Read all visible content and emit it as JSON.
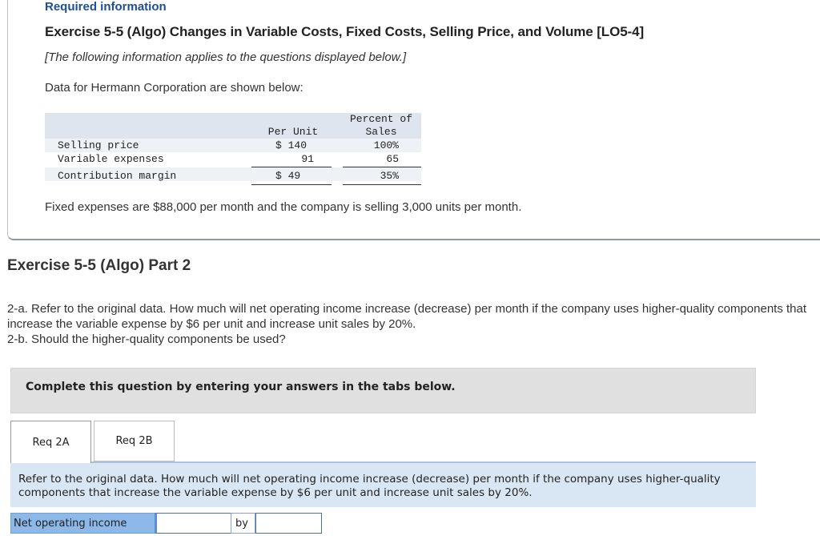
{
  "info": {
    "required_label": "Required information",
    "exercise_title": "Exercise 5-5 (Algo) Changes in Variable Costs, Fixed Costs, Selling Price, and Volume [LO5-4]",
    "follow_note": "[The following information applies to the questions displayed below.]",
    "data_intro": "Data for Hermann Corporation are shown below:",
    "table": {
      "header_per_unit": "Per Unit",
      "header_percent_line1": "Percent of",
      "header_percent_line2": "Sales",
      "rows": [
        {
          "label": "Selling price",
          "per_unit": "$ 140",
          "percent": "100%"
        },
        {
          "label": "Variable expenses",
          "per_unit": "91",
          "percent": "65"
        },
        {
          "label": "Contribution margin",
          "per_unit": "$ 49",
          "percent": "35%"
        }
      ]
    },
    "fixed_text": "Fixed expenses are $88,000 per month and the company is selling 3,000 units per month."
  },
  "part": {
    "title": "Exercise 5-5 (Algo) Part 2",
    "question_2a": "2-a. Refer to the original data. How much will net operating income increase (decrease) per month if the company uses higher-quality components that increase the variable expense by $6 per unit and increase unit sales by 20%.",
    "question_2b": "2-b. Should the higher-quality components be used?"
  },
  "complete_instructions": "Complete this question by entering your answers in the tabs below.",
  "tabs": [
    {
      "label": "Req 2A",
      "active": true
    },
    {
      "label": "Req 2B",
      "active": false
    }
  ],
  "panel_text": "Refer to the original data. How much will net operating income increase (decrease) per month if the company uses higher-quality components that increase the variable expense by $6 per unit and increase unit sales by 20%.",
  "answer": {
    "label": "Net operating income",
    "select_value": "",
    "by_label": "by",
    "amount_value": ""
  },
  "colors": {
    "required_label": "#1d4f91",
    "tab_panel_bg": "#d9e7f5",
    "answer_label_bg": "#8db9e8",
    "instructions_bg": "#e0e0e0"
  }
}
